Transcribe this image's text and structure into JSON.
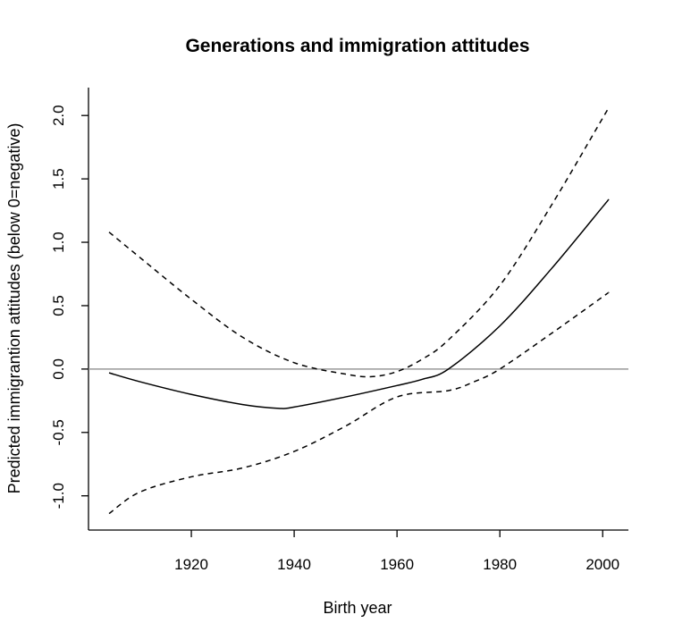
{
  "chart_data": {
    "type": "line",
    "title": "Generations and immigration attitudes",
    "xlabel": "Birth year",
    "ylabel": "Predicted immigrantion attitudes (below 0=negative)",
    "xlim": [
      1900,
      2005
    ],
    "ylim": [
      -1.27,
      2.22
    ],
    "x_ticks": [
      1920,
      1940,
      1960,
      1980,
      2000
    ],
    "x_tick_labels": [
      "1920",
      "1940",
      "1960",
      "1980",
      "2000"
    ],
    "y_ticks": [
      -1.0,
      -0.5,
      0.0,
      0.5,
      1.0,
      1.5,
      2.0
    ],
    "y_tick_labels": [
      "-1.0",
      "-0.5",
      "0.0",
      "0.5",
      "1.0",
      "1.5",
      "2.0"
    ],
    "reference_line": {
      "y": 0.0,
      "color": "#999999"
    },
    "grid": false,
    "series": [
      {
        "style": "solid",
        "color": "#000000",
        "x": [
          1904,
          1910,
          1920,
          1930,
          1937,
          1940,
          1950,
          1960,
          1965,
          1970,
          1980,
          1990,
          2000,
          2001
        ],
        "y": [
          -0.03,
          -0.1,
          -0.2,
          -0.28,
          -0.31,
          -0.3,
          -0.22,
          -0.13,
          -0.08,
          0.0,
          0.34,
          0.79,
          1.28,
          1.33
        ]
      },
      {
        "style": "dashed",
        "color": "#000000",
        "x": [
          1904,
          1910,
          1920,
          1930,
          1940,
          1950,
          1955,
          1960,
          1965,
          1970,
          1980,
          1990,
          2000,
          2001
        ],
        "y": [
          1.08,
          0.88,
          0.55,
          0.25,
          0.05,
          -0.04,
          -0.06,
          -0.02,
          0.08,
          0.23,
          0.66,
          1.29,
          1.98,
          2.05
        ]
      },
      {
        "style": "dashed",
        "color": "#000000",
        "x": [
          1904,
          1910,
          1920,
          1930,
          1940,
          1950,
          1960,
          1970,
          1975,
          1980,
          1990,
          2000,
          2001
        ],
        "y": [
          -1.14,
          -0.97,
          -0.85,
          -0.78,
          -0.65,
          -0.45,
          -0.22,
          -0.17,
          -0.1,
          0.0,
          0.28,
          0.57,
          0.6
        ]
      }
    ]
  }
}
